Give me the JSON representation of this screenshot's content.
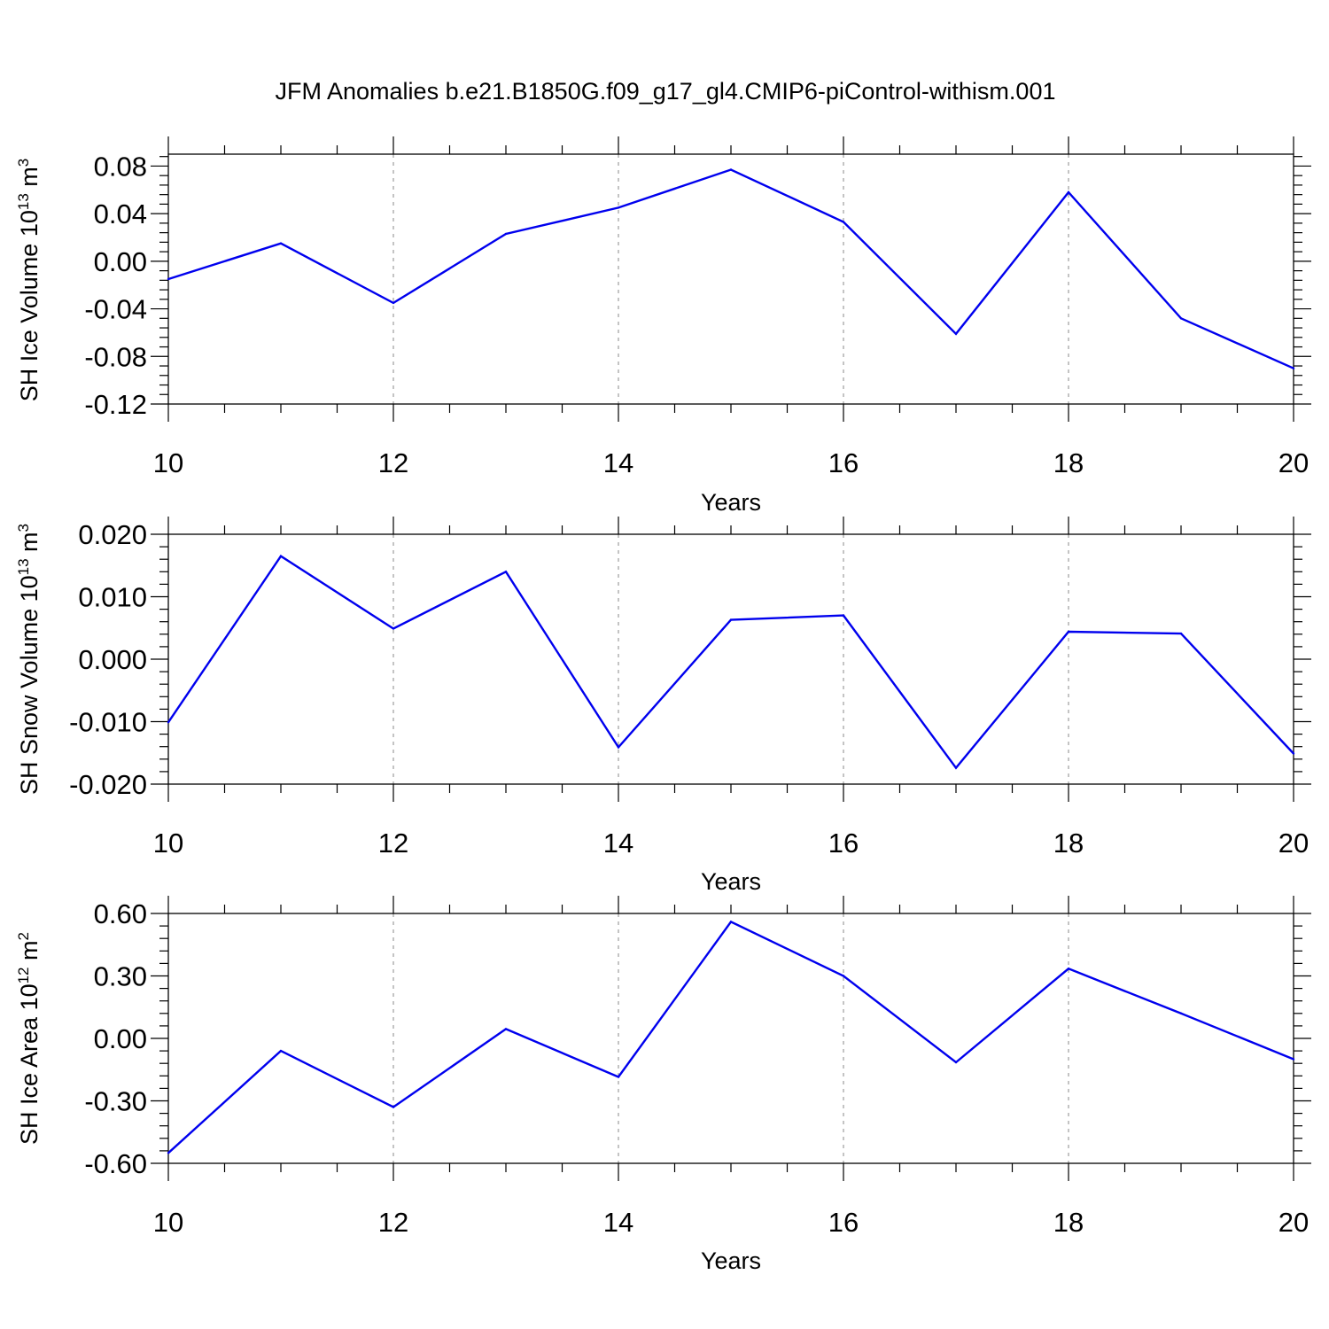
{
  "figure_title": "JFM Anomalies b.e21.B1850G.f09_g17_gl4.CMIP6-piControl-withism.001",
  "colors": {
    "line": "#0000ee",
    "axes": "#000000",
    "grid": "#888888"
  },
  "chart_data": [
    {
      "type": "line",
      "title": "JFM Anomalies b.e21.B1850G.f09_g17_gl4.CMIP6-piControl-withism.001",
      "xlabel": "Years",
      "ylabel": {
        "text": "SH Ice Volume 10",
        "exponent": "13",
        "unit": "m",
        "unit_exponent": "3"
      },
      "x": [
        10,
        11,
        12,
        13,
        14,
        15,
        16,
        17,
        18,
        19,
        20
      ],
      "series": [
        {
          "values": [
            -0.015,
            0.015,
            -0.035,
            0.023,
            0.045,
            0.077,
            0.033,
            -0.061,
            0.058,
            -0.048,
            -0.09
          ]
        }
      ],
      "xlim": [
        10,
        20
      ],
      "ylim": [
        -0.12,
        0.09
      ],
      "xticks": [
        10,
        12,
        14,
        16,
        18,
        20
      ],
      "xtick_labels": [
        "10",
        "12",
        "14",
        "16",
        "18",
        "20"
      ],
      "yticks": [
        0.08,
        0.04,
        0.0,
        -0.04,
        -0.08,
        -0.12
      ],
      "ytick_labels": [
        "0.08",
        "0.04",
        "0.00",
        "-0.04",
        "-0.08",
        "-0.12"
      ],
      "y_minor_step": 0.008,
      "grid": "vertical dashed at major x ticks",
      "legend": "none"
    },
    {
      "type": "line",
      "title": "",
      "xlabel": "Years",
      "ylabel": {
        "text": "SH Snow Volume 10",
        "exponent": "13",
        "unit": "m",
        "unit_exponent": "3"
      },
      "x": [
        10,
        11,
        12,
        13,
        14,
        15,
        16,
        17,
        18,
        19,
        20
      ],
      "series": [
        {
          "values": [
            -0.0101,
            0.0165,
            0.0049,
            0.014,
            -0.0141,
            0.0063,
            0.007,
            -0.0174,
            0.0044,
            0.0041,
            -0.0151
          ]
        }
      ],
      "xlim": [
        10,
        20
      ],
      "ylim": [
        -0.02,
        0.02
      ],
      "xticks": [
        10,
        12,
        14,
        16,
        18,
        20
      ],
      "xtick_labels": [
        "10",
        "12",
        "14",
        "16",
        "18",
        "20"
      ],
      "yticks": [
        0.02,
        0.01,
        0.0,
        -0.01,
        -0.02
      ],
      "ytick_labels": [
        "0.020",
        "0.010",
        "0.000",
        "-0.010",
        "-0.020"
      ],
      "y_minor_step": 0.002,
      "grid": "vertical dashed at major x ticks",
      "legend": "none"
    },
    {
      "type": "line",
      "title": "",
      "xlabel": "Years",
      "ylabel": {
        "text": "SH Ice Area 10",
        "exponent": "12",
        "unit": "m",
        "unit_exponent": "2"
      },
      "x": [
        10,
        11,
        12,
        13,
        14,
        15,
        16,
        17,
        18,
        19,
        20
      ],
      "series": [
        {
          "values": [
            -0.55,
            -0.06,
            -0.33,
            0.045,
            -0.185,
            0.56,
            0.3,
            -0.115,
            0.335,
            0.12,
            -0.1
          ]
        }
      ],
      "xlim": [
        10,
        20
      ],
      "ylim": [
        -0.6,
        0.6
      ],
      "xticks": [
        10,
        12,
        14,
        16,
        18,
        20
      ],
      "xtick_labels": [
        "10",
        "12",
        "14",
        "16",
        "18",
        "20"
      ],
      "yticks": [
        0.6,
        0.3,
        0.0,
        -0.3,
        -0.6
      ],
      "ytick_labels": [
        "0.60",
        "0.30",
        "0.00",
        "-0.30",
        "-0.60"
      ],
      "y_minor_step": 0.06,
      "grid": "vertical dashed at major x ticks",
      "legend": "none"
    }
  ]
}
